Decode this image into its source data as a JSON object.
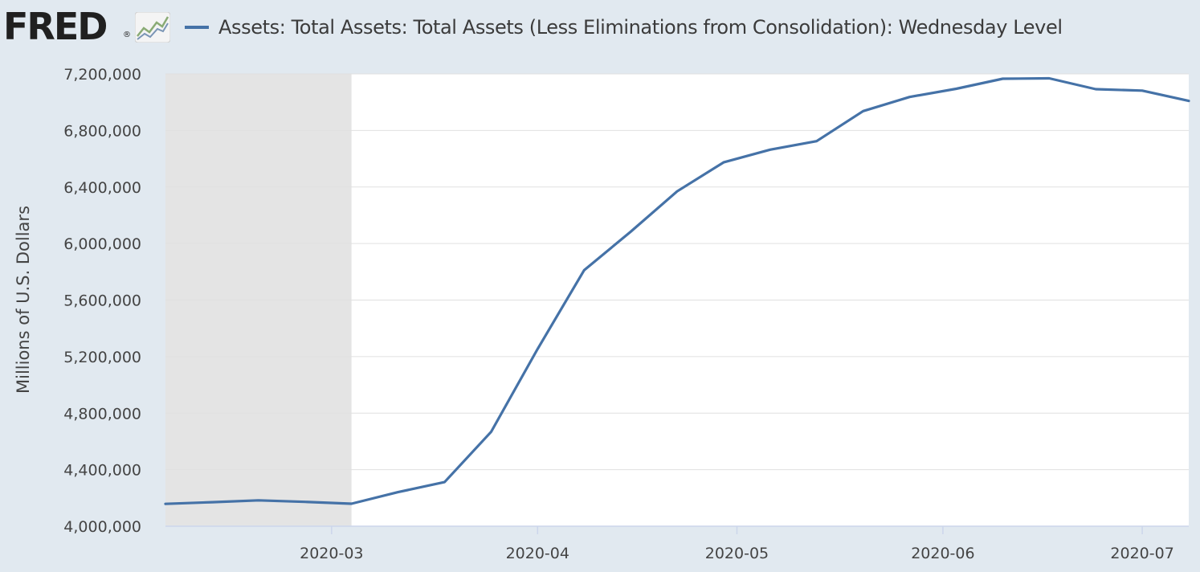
{
  "header": {
    "logo_text": "FRED",
    "logo_reg": "®",
    "logo_icon": "line-graph-icon",
    "legend_label": "Assets: Total Assets: Total Assets (Less Eliminations from Consolidation): Wednesday Level",
    "series_color": "#4572a7"
  },
  "chart_data": {
    "type": "line",
    "title": "",
    "xlabel": "",
    "ylabel": "Millions of U.S. Dollars",
    "ylim": [
      4000000,
      7200000
    ],
    "xlim": [
      "2020-02-05",
      "2020-07-08"
    ],
    "grid": true,
    "y_ticks": [
      4000000,
      4400000,
      4800000,
      5200000,
      5600000,
      6000000,
      6400000,
      6800000,
      7200000
    ],
    "y_tick_labels": [
      "4,000,000",
      "4,400,000",
      "4,800,000",
      "5,200,000",
      "5,600,000",
      "6,000,000",
      "6,400,000",
      "6,800,000",
      "7,200,000"
    ],
    "x_ticks": [
      "2020-03-01",
      "2020-04-01",
      "2020-05-01",
      "2020-06-01",
      "2020-07-01"
    ],
    "x_tick_labels": [
      "2020-03",
      "2020-04",
      "2020-05",
      "2020-06",
      "2020-07"
    ],
    "shaded_region": {
      "from": "2020-02-05",
      "to": "2020-03-04",
      "color": "#e4e4e4"
    },
    "series": [
      {
        "color": "#4572a7",
        "x": [
          "2020-02-05",
          "2020-02-12",
          "2020-02-19",
          "2020-02-26",
          "2020-03-04",
          "2020-03-11",
          "2020-03-18",
          "2020-03-25",
          "2020-04-01",
          "2020-04-08",
          "2020-04-15",
          "2020-04-22",
          "2020-04-29",
          "2020-05-06",
          "2020-05-13",
          "2020-05-20",
          "2020-05-27",
          "2020-06-03",
          "2020-06-10",
          "2020-06-17",
          "2020-06-24",
          "2020-07-01",
          "2020-07-08"
        ],
        "values": [
          4158000,
          4170000,
          4183000,
          4172000,
          4159000,
          4241000,
          4312000,
          4667000,
          5254000,
          5811000,
          6083000,
          6369000,
          6574000,
          6664000,
          6724000,
          6937000,
          7037000,
          7095000,
          7166000,
          7169000,
          7092000,
          7082000,
          7009000
        ]
      }
    ]
  }
}
